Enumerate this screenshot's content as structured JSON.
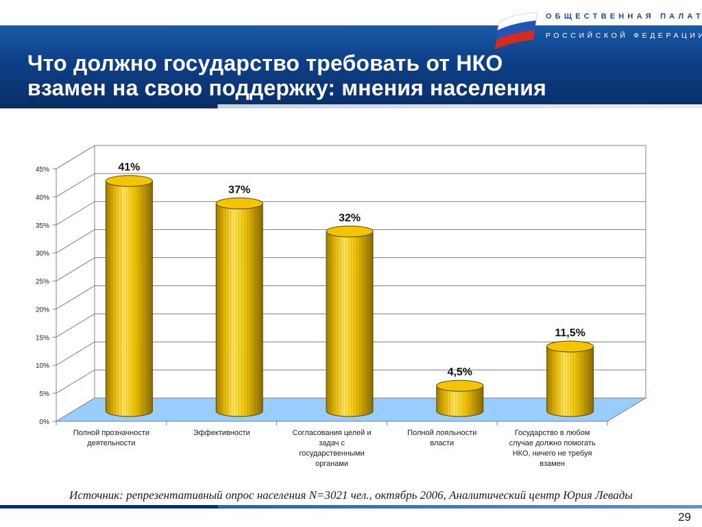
{
  "header": {
    "title_line1": "Что должно государство требовать от НКО",
    "title_line2": "взамен на свою поддержку: мнения населения",
    "org_line1": "ОБЩЕСТВЕННАЯ ПАЛАТА",
    "org_line2": "РОССИЙСКОЙ ФЕДЕРАЦИИ",
    "logo_icon": "russian-flag-icon",
    "colors": {
      "header_blue": "#0d3f86",
      "bar_gold": "#e8b800",
      "floor": "#99ccff"
    }
  },
  "chart_data": {
    "type": "bar",
    "categories": [
      [
        "Полной прозначности",
        "деятельности"
      ],
      [
        "Эффективности"
      ],
      [
        "Согласования целей и",
        "задач с",
        "государственными",
        "органами"
      ],
      [
        "Полной лояльности",
        "власти"
      ],
      [
        "Государство в любом",
        "случае должно помогать",
        "НКО, ничего не требуя",
        "взамен"
      ]
    ],
    "values": [
      41,
      37,
      32,
      4.5,
      11.5
    ],
    "value_labels": [
      "41%",
      "37%",
      "32%",
      "4,5%",
      "11,5%"
    ],
    "y_ticks": [
      "0%",
      "5%",
      "10%",
      "15%",
      "20%",
      "25%",
      "30%",
      "35%",
      "40%",
      "45%"
    ],
    "ylim": [
      0,
      45
    ],
    "grid": true,
    "bar_style": "3d-cylinder"
  },
  "footer": {
    "source": "Источник: репрезентативный опрос населения N=3021 чел., октябрь 2006, Аналитический центр Юрия Левады",
    "page_number": "29"
  }
}
